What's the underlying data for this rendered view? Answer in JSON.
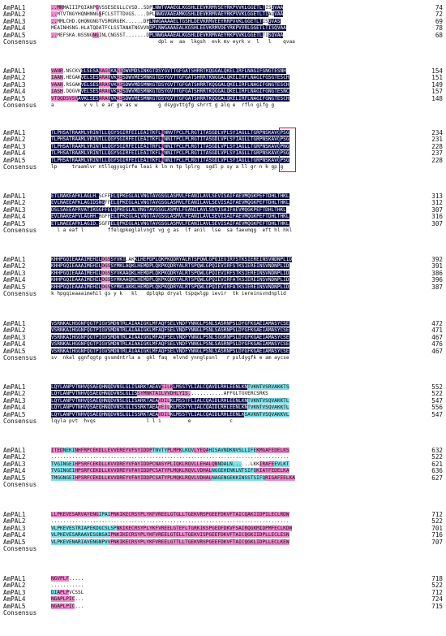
{
  "consensus_label": "Consensus",
  "colors": {
    "identical": "#0a0c45",
    "high": "#ee88cc",
    "partial": "#7fe0ea",
    "box": "#e01010"
  },
  "blocks": [
    {
      "rows": [
        {
          "name": "AmPAL1",
          "seq": "..MNMAIIIPQIANPGVSSESEGLLCVSD..SDPLNWTVAAEGLKGSHLEEVKRMVSEYRKPVVKLGGETLTISQVAA",
          "hl": "2222000000000002000000000000000000111111111111111111111111111111111111110011111122",
          "num": "74"
        },
        {
          "name": "AmPAL2",
          "seq": "..MTVTNGYHQNHNNGSFCLSTTTDVGS....DPLNWGVAAEAMKGSHLDEVKRMVAEYRKPVVKLGGETLTIAQVAA",
          "hl": "22000000000000002000000000000000000111111111111111111111111111111111111110011111122",
          "num": "72"
        },
        {
          "name": "AmPAL3",
          "seq": "..MMLCHD.QHQNGNGTVSMGRGEK......DPLNWGAAAAELTGSHLDEVKRMVEEYRRPVVKLGGETLTISQVAS",
          "hl": "22000000000000000000000000000000011111111111111111111111111111111111111001111112",
          "num": "69"
        },
        {
          "name": "AmPAL4",
          "seq": "MEAINHSNG.HLATQDATFCLSSTANATNGVVNDPLNWGAAAEALKGSHLEEVKRMVDEYRKPVVRLGGETLTISQVAA",
          "hl": "0000000000000000000000000000000001111111111111111111111111111111111111111111111122",
          "num": "78"
        },
        {
          "name": "AmPAL5",
          "seq": "..MEFSKA.NSSNGNGINLCNGSST.......DPLNWGAAAEALKGSHLDEVKRMVAEYRKPVVKLGGETLTISQVAA",
          "hl": "22000000000000220000000000000000011111111111111111111111111111111111111001111122",
          "num": "68"
        }
      ],
      "consensus": "                                    dpl w  aa  lkgsh  evk mv eyrk v  l   l    qvaa"
    },
    {
      "rows": [
        {
          "name": "AmPAL1",
          "seq": "VANR.NSCKVELSESARAGVKASSDWVMDSINKGTDSYGVTTGFGATSHRRTKQGGALQKELIRFLNAGIFGNGTESNH",
          "hl": "2222000000111111222211221111111111111111111111111111111111111111111111111111111111",
          "num": "154"
        },
        {
          "name": "AmPAL2",
          "seq": "IAAN.HEGAKVELSESARAGVKASSDWVMESMNKGTDSYGVTTGFGATSHRRTKNGGALQKELIRFLNAGIFGSGTESCH",
          "hl": "22220000001111112222112211111111111111111111111111111111111111111111111111111111111",
          "num": "151"
        },
        {
          "name": "AmPAL3",
          "seq": "VAAN.RSGAKVELSESARAGVKASSDWVMDSMNKGTDSYGVTTGFGATSHRRTKQGGALQKELIRFLNAGIFGNGTESCH",
          "hl": "22220000001111112222112211111111111111111111111111111111111111111111111111111111111",
          "num": "149"
        },
        {
          "name": "AmPAL4",
          "seq": "IASH.DQGVKVELSESARAGVKASSDWVMDSMNKGTDSYGVTTGFGATSHRRTKQGGALQKELIRFLNAGIFGNGTESNC",
          "hl": "22220000001111112222112211111111111111111111111111111111111111111111111111111111111",
          "num": "157"
        },
        {
          "name": "AmPAL5",
          "seq": "VTQQDSVSVAVKLSESARAGVKASSDWVMESMNKGTDSYGVTTGFGATSHRRTKQGGALQKELIRFLNAGIFGNGTESCH",
          "hl": "22222222211111112222112211111111111111111111111111111111111111111111111111111111111",
          "num": "148"
        }
      ],
      "consensus": "a          v v l e ar gv as w       g dsygvttgfg shrrt g alq e  rfln gifg g"
    },
    {
      "rows": [
        {
          "name": "AmPAL1",
          "seq": "TLPHSATRAAMLVRINTLLQGYSGIRFEILEAITKFLNNNVTPCLPLRGTITASGDLVPLSYIAGLLTGRPNSKAVGPSG",
          "hl": "11111111111111111111111111111111111112111111111111111111111111111111111111111111111",
          "num": "234"
        },
        {
          "name": "AmPAL2",
          "seq": "TLPHSATRAAMLVRINTLLQGYSGIRFEILEAITKFLNNNITPCLPLRGTITASGDLVPLSYIAGLLTGRPNSKAVGPSG",
          "hl": "11111111111111111111111111111111111112111111111111111111111111111111111111111111111",
          "num": "231"
        },
        {
          "name": "AmPAL3",
          "seq": "TLPHSATRAAMLVRINTLLQGYSGIRFEILEAITRFLNNNITPCLPLRGTITASGDLVPLSYIAGLLTGRPNSKAVGPNG",
          "hl": "11111111111111111111111111111111111112111111111111111111111111111111111111111111111",
          "num": "228"
        },
        {
          "name": "AmPAL4",
          "seq": "TLPHSATRAAMLVRINTLLQGYSGIRFEILEAITKFLNNNITPCLPLRGTITASGDLVPLSYIAGLLTGRPNSKAVGPSG",
          "hl": "11111111111111111111111111111111111112111111111111111111111111111111111111111111111",
          "num": "237"
        },
        {
          "name": "AmPAL5",
          "seq": "TLPHSATRAAMLVRINTLLQGYSGIRFEILEAITKFLNNNITPCLPLRGTITASGDLVPLSYIAGLLTGRPNSKAVGPSG",
          "hl": "11111111111111111111111111111111111112111111111111111111111111111111111111111111111",
          "num": "228"
        }
      ],
      "consensus": "lp     traamlvr ntllqgysgirfe leai k ln n tp lplrg  sgdl p sy a ll gr n k gp g"
    },
    {
      "rows": [
        {
          "name": "AmPAL1",
          "seq": "ETLNAKEAFKLAGLH.SCFFELQPKEGLALVNGTAVGSGLASMVLFEANILAVLSEVISAIFAEVMQGKPEFTDHLTHKL",
          "hl": "11111111111111110000111111111111111111111111111111111111111111111111111111111111111",
          "num": "313"
        },
        {
          "name": "AmPAL2",
          "seq": "EVLNAEEAFKLAGIDSNGFFELQPKEGLALVNGTAVGSGLASMVLFEANILAVLSEVISAIFAEVMQGKPEFTDHLTHKL",
          "hl": "11111111111111111100111111111111111111111111111111111111111111111111111111111111111",
          "num": "312"
        },
        {
          "name": "AmPAL3",
          "seq": "DSLSAEEAFRVATIKGGFFELQPKEGLALVNGTAVGSGLASMVLFEANILAVLSEVISAIFAEVMQGKPEFTDHLTHKL",
          "hl": "11111111111111111111111111111111111111111111111111111111111111111111111111111111111",
          "num": "307"
        },
        {
          "name": "AmPAL4",
          "seq": "EVLNAKEAFVLAGHH.RGFFELQPKEGLALVNGTAVGSGLASMVLFEANILAVLSEVISAIFAEVMQGKPEFTDHLTHKL",
          "hl": "11111111111111110000111111111111111111111111111111111111111111111111111111111111111",
          "num": "316"
        },
        {
          "name": "AmPAL5",
          "seq": "ETLNAEEAFKLAGID.SGFFELQPKEGLALVNGTAVGSGLASMVLFEANILAVLSEVISAIFAEVMQGKPEFTDHLTHKL",
          "hl": "11111111111111110000111111111111111111111111111111111111111111111111111111111111111",
          "num": "307"
        }
      ],
      "consensus": "  l a eaf l        ffelqpkeglalvngt vg g as  lf anil  lse  sa faevmqg  eft hl hkl"
    },
    {
      "rows": [
        {
          "name": "AmPAL1",
          "seq": "KHHPGQIEAAAIMEHILDGSSYVKT.AKKLHEPDPLQKPKQDRYALRTSPQWLGPQIEVIRYSTKSIEREINSVNDNPLID",
          "hl": "11111111111111111222111110001111111111111111111111111111111111111111111111111111111",
          "num": "392"
        },
        {
          "name": "AmPAL2",
          "seq": "KHHPGQIEAAAIMEHILDGSSYMKLAQKLHEMDPLQKPKQDRYALRTSPQWLGPQIEVIRFSTKSIEREINSVNDNPLID",
          "hl": "11111111111111111222111111111111111111111111111111111111111111111111111111111111111",
          "num": "391"
        },
        {
          "name": "AmPAL3",
          "seq": "KHHPGQIEAAAIMEHILDGSSYVKAAQKLHEMDPLQKPKQDRYALRTSPQWLGPQIEVIRFSTKSIEREINSVNDNPLID",
          "hl": "11111111111111111222111111111111111111111111111111111111111111111111111111111111111",
          "num": "386"
        },
        {
          "name": "AmPAL4",
          "seq": "KHHPGQIEAAAIMEHILDGSSYMKAAQKLHEMDPLQKPKQDRYALRTSPQWLGPQIEVIRFATKSIEREINSVNDNPLID",
          "hl": "11111111111111111222111111111111111111111111111111111111111111111111111111111111111",
          "num": "396"
        },
        {
          "name": "AmPAL5",
          "seq": "KHHPGQIEAAAIMEHILDGSSYMKLAKKLHEMDPLQKPKQDRYALRTSPQWLGPQIEVIRFATKSIEREINSVNDNPLID",
          "hl": "11111111111111111222111111111111111111111111111111111111111111111111111111111111111",
          "num": "387"
        }
      ],
      "consensus": "k hpgqieaaaimehil gs y k   kl   dplqkp dryal tspqwlgp ievir  tk iereinsvndnplid"
    },
    {
      "rows": [
        {
          "name": "AmPAL1",
          "seq": "VSRNKALHGGNFQGTPIGVSMDNTRLAIAAIGKLMFAQFSELVNDFYNNGLPSNLSASRNPSLDYGFKGAEIAMASYCSE",
          "hl": "11111111111111111111111111111111111111111111111111111111111111111111111111111111111",
          "num": "472"
        },
        {
          "name": "AmPAL2",
          "seq": "VSRNKAIHGGNFQGTPIGVSMDNTRLAIAAIGKLMFAQFSELVNDFYNNGLPSNLSASRNPSLDYGFKGAEIAMASYCSE",
          "hl": "11111111111111111111111111111111111111111111111111111111111111111111111111111111111",
          "num": "471"
        },
        {
          "name": "AmPAL3",
          "seq": "VSRNKAIHGGNFQGTPIGVSMDNTRLAIAAIGKLMFAQFSELVNDFYNNGLPSNLSGGRNPSLDYGFKGAEIAMASYCSE",
          "hl": "11111111111111111111111111111111111111111111111111111111111111111111111111111111111",
          "num": "467"
        },
        {
          "name": "AmPAL4",
          "seq": "VSRNKALHGGNFQGTPIGVSMDNTRLAIAAIGKLMFAQFSELVNDFYNNGLPSNLSASRNPSLDYGFKGAEIAMASYCSE",
          "hl": "11111111111111111111111111111111111111111111111111111111111111111111111111111111111",
          "num": "476"
        },
        {
          "name": "AmPAL5",
          "seq": "VSRNKAIHGGNFQGTPIGVSMDNTRLAIAAIGKLMFAQFSELVNDFYNNGLPSNLSASRNPSLDYGFKGAEIAMASYCSE",
          "hl": "11111111111111111111111111111111111111111111111111111111111111111111111111111111111",
          "num": "467"
        }
      ],
      "consensus": "sv  nkal ggnfqgtp gvsmdntrla a  gkl faq  elvnd ynnglpsnl   r psldygfk e am aycse"
    },
    {
      "rows": [
        {
          "name": "AmPAL1",
          "seq": "LQYLANPVTNHVQSAEQHNQDVNSLGLISARKTAEAVEILKLMSSTYLIALCQAVDLRHLEENLKNTVKNTVSRVAKKTS",
          "hl": "11111111111111111111111111111111111112222111111111111111111111111133333333333333",
          "num": "552"
        },
        {
          "name": "AmPAL2",
          "seq": "LQYLANPVTNHVQSAEQHNQDVNSLGLISSYMNKTAILVVDHLYIS............AFFGLTGVERCSRKS",
          "hl": "1111111111111111111111111111122222222222222222200000000000000000000000000000000",
          "num": "522"
        },
        {
          "name": "AmPAL3",
          "seq": "LQYLANPVTNHVQSAEQHNQDVNSLGLISARKTAEAVDILKLMSSTFLIALCQAIDLRHLEENLKNTVKNTVSQVAKKTL",
          "hl": "11111111111111111111111111111111111122221111111111111111111111111133333333333333",
          "num": "547"
        },
        {
          "name": "AmPAL4",
          "seq": "LQYLANPVTNHVQSAEQHNQDVNSLGLISSRKTAEAVEILKLMSSTYLIALCQAIDLRHLEENLKNTVKNTVSQVAKKTL",
          "hl": "11111111111111111111111111111111111122221111111111111111111111111133333333333333",
          "num": "556"
        },
        {
          "name": "AmPAL5",
          "seq": "LQYLANPVTNHVQSAEQHNQDVNSLGLISSRKTAEAVDILKLMSSTYLIALCQAIDLRHLEENLKSAVKNTVSQVAKKVL",
          "hl": "11111111111111111111111111111111111122221111111111111111111111111333333333333333",
          "num": "547"
        }
      ],
      "consensus": "lqyla pvt  hvqs                 l l i         e             c"
    },
    {
      "rows": [
        {
          "name": "AmPAL1",
          "seq": "ITEDNEKINHFRPCEKDLLEVVEREYVFSYIDDPTNVTYPLMPKLKQVLYEQAHISAVNDKNVSLLIFEKMGAFEDELKS",
          "hl": "22223333222222222222222222222222223333322222333322222333333333333333322222222222222",
          "num": "632"
        },
        {
          "name": "AmPAL2",
          "seq": "................................................................................",
          "hl": "0000000000000000000000000000000000000000000000000000000000000000000000000000000000",
          "num": "522"
        },
        {
          "name": "AmPAL3",
          "seq": "TVGINGEIHPSRFCEKDLLKVVDREYVFAYIDDPCNASYPLIQKLRQVLLEHALQNNDALN......LKKIRAFEEVLKT",
          "hl": "3333333322222222222222222222222222222222222222222222222233333333000000222223333333",
          "num": "621"
        },
        {
          "name": "AmPAL4",
          "seq": "TVGINGEIHPSRFCEKDLLKVVDREYVFAYIDDPCSATYPLMQKLRQVLVDHALNGGEHENKLNTSIFQKIATFEDELKA",
          "hl": "3333333322222222222222222222222222222222222222222222223333333333333332222222222222",
          "num": "636"
        },
        {
          "name": "AmPAL5",
          "seq": "TMGGNGEIHPSRFCEKDLLKVVDREYVFAYIDDPCSATYPLMQKLRQVLVDHALNAGENGEKKINSSTSIFQRIGAFEELKA",
          "hl": "3333333322222222222222222222222222222222222222222222223333333333333333332222222222",
          "num": "627"
        }
      ],
      "consensus": ""
    },
    {
      "rows": [
        {
          "name": "AmPAL1",
          "seq": "LLPKEVESARVAYENGIPAIPNKIKECRSYPLYKFVREELGTGLLTGEKVRSPGEEFDKVFTAICQAKIIDPILECLRDW",
          "hl": "22222222222222223333222222222222222222222222222222222222222222222222222222222222222",
          "num": "712"
        },
        {
          "name": "AmPAL2",
          "seq": "................................................................................",
          "hl": "0000000000000000000000000000000000000000000000000000000000000000000000000000000000",
          "num": "522"
        },
        {
          "name": "AmPAL3",
          "seq": "VLPKEVESTRIAPEKDGCSLSPNKIKECRSYPLYKFVREELGTEFLTGRKIKSPGEDFDKVFSAIRQGKMIDPMFECLKDW",
          "hl": "3333333333333333333333222222222222222222222222222222222222222222222222222222222222",
          "num": "701"
        },
        {
          "name": "AmPAL4",
          "seq": "VLPKEVESARAAVESGNSAIPNKIKECRSYPLYKFVREELGTELLTGEKVISPGEEFDKVFTAICQGKIIDPLLECLESN",
          "hl": "3333333333333333333322222222222222222222222222222222222222222222222222222222222222",
          "num": "716"
        },
        {
          "name": "AmPAL5",
          "seq": "VLPKEVENARIAVENGNPVVPNKIKECRSYPLYKFVREELGTTLLTGEKVRSPGEEFDKVFTAICQGKLIDPLLECLKEW",
          "hl": "3333333333333333333322222222222222222222222222222222222222222222222222222222222222",
          "num": "707"
        }
      ],
      "consensus": ""
    },
    {
      "rows": [
        {
          "name": "AmPAL1",
          "seq": "NGVPLF.....",
          "hl": "22222200000",
          "num": "718"
        },
        {
          "name": "AmPAL2",
          "seq": "...........",
          "hl": "00000000000",
          "num": "522"
        },
        {
          "name": "AmPAL3",
          "seq": "DIAPLPVCSSL",
          "hl": "33222200000",
          "num": "712"
        },
        {
          "name": "AmPAL4",
          "seq": "NGAPLPIC...",
          "hl": "22222222000",
          "num": "724"
        },
        {
          "name": "AmPAL5",
          "seq": "NGAPLPIC...",
          "hl": "22222222000",
          "num": "715"
        }
      ],
      "consensus": ""
    }
  ]
}
